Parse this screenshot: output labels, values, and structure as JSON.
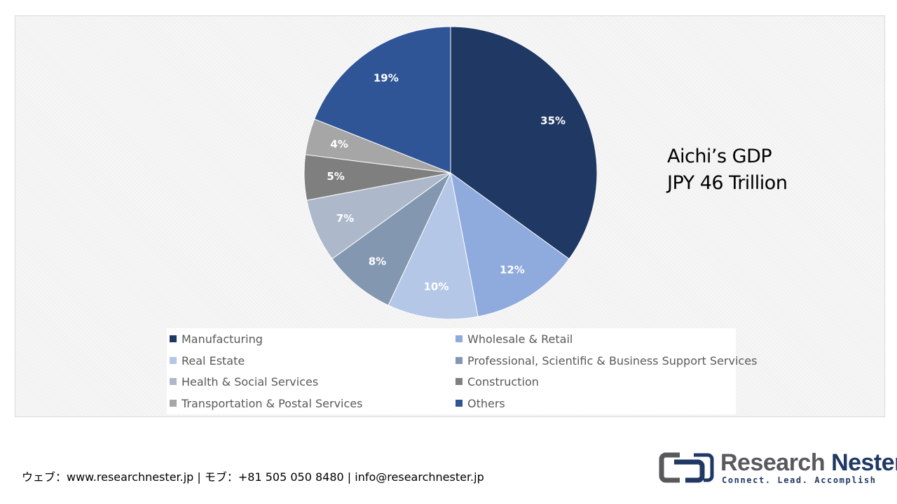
{
  "chart_data": {
    "type": "pie",
    "categories": [
      "Manufacturing",
      "Wholesale & Retail",
      "Real Estate",
      "Professional, Scientific & Business Support Services",
      "Health & Social Services",
      "Construction",
      "Transportation & Postal Services",
      "Others"
    ],
    "values": [
      35,
      12,
      10,
      8,
      7,
      5,
      4,
      19
    ],
    "data_labels": [
      "35%",
      "12%",
      "10%",
      "8%",
      "7%",
      "5%",
      "4%",
      "19%"
    ],
    "colors": [
      "#203864",
      "#8faadc",
      "#b4c7e7",
      "#8497b0",
      "#adb9ca",
      "#7f7f7f",
      "#a6a6a6",
      "#2f5597"
    ],
    "start_angle": "12 o'clock",
    "direction": "clockwise",
    "legend_position": "bottom",
    "annotation": [
      "Aichi’s GDP",
      "JPY 46 Trillion"
    ]
  },
  "footer": {
    "contact": "ウェブ：www.researchnester.jp | モブ：+81 505 050 8480 | info@researchnester.jp"
  },
  "logo": {
    "name_part1": "Research",
    "name_part2": "Nester",
    "tagline": "Connect. Lead. Accomplish"
  }
}
